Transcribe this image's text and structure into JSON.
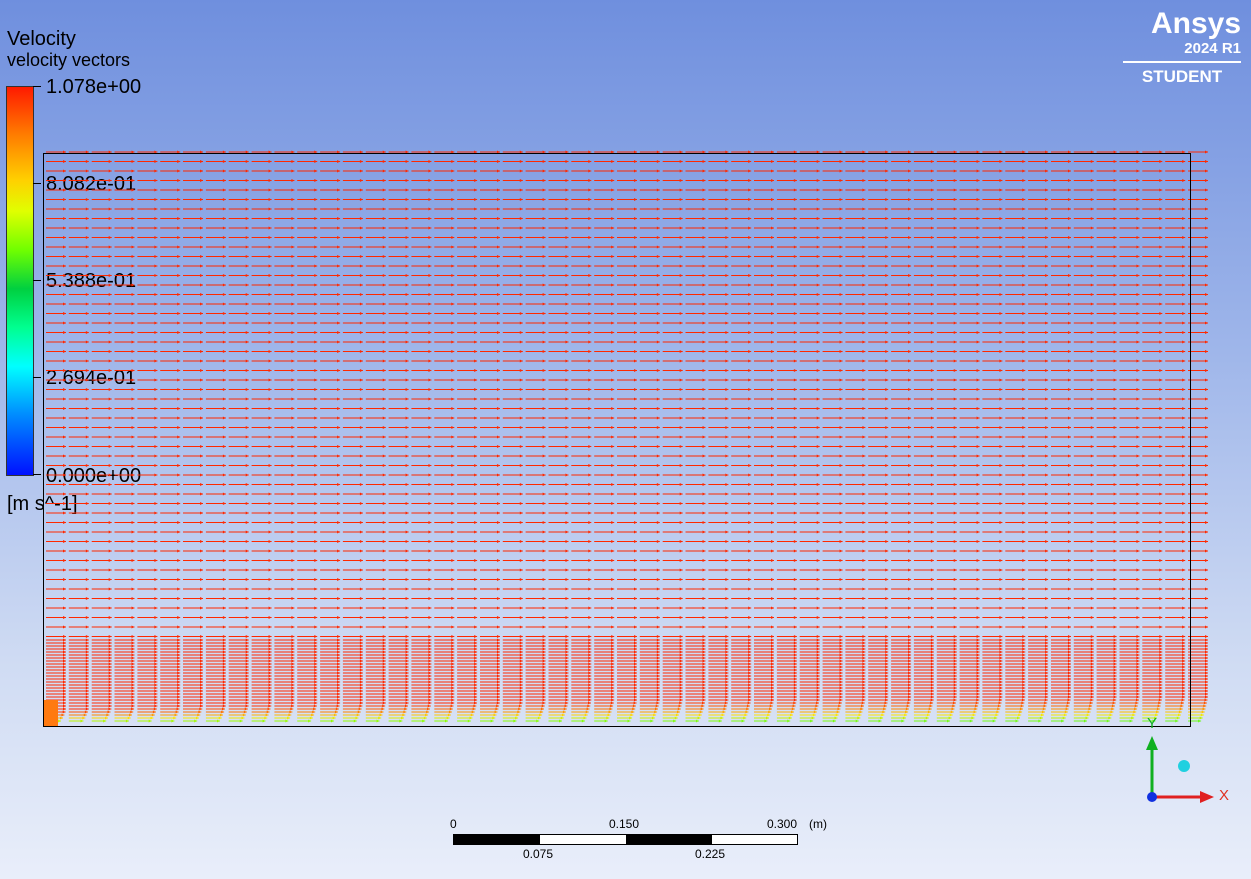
{
  "legend": {
    "title": "Velocity",
    "subtitle": "velocity vectors",
    "ticks": [
      "1.078e+00",
      "8.082e-01",
      "5.388e-01",
      "2.694e-01",
      "0.000e+00"
    ],
    "units": "[m s^-1]"
  },
  "logo": {
    "brand": "Ansys",
    "version": "2024 R1",
    "edition": "STUDENT"
  },
  "scale_bar": {
    "top_labels": [
      "0",
      "0.150",
      "0.300"
    ],
    "unit": "(m)",
    "bottom_labels": [
      "0.075",
      "0.225"
    ]
  },
  "triad": {
    "x_label": "X",
    "y_label": "Y"
  },
  "colors": {
    "vector_red": "#ff3000",
    "domain_border": "#000000"
  }
}
